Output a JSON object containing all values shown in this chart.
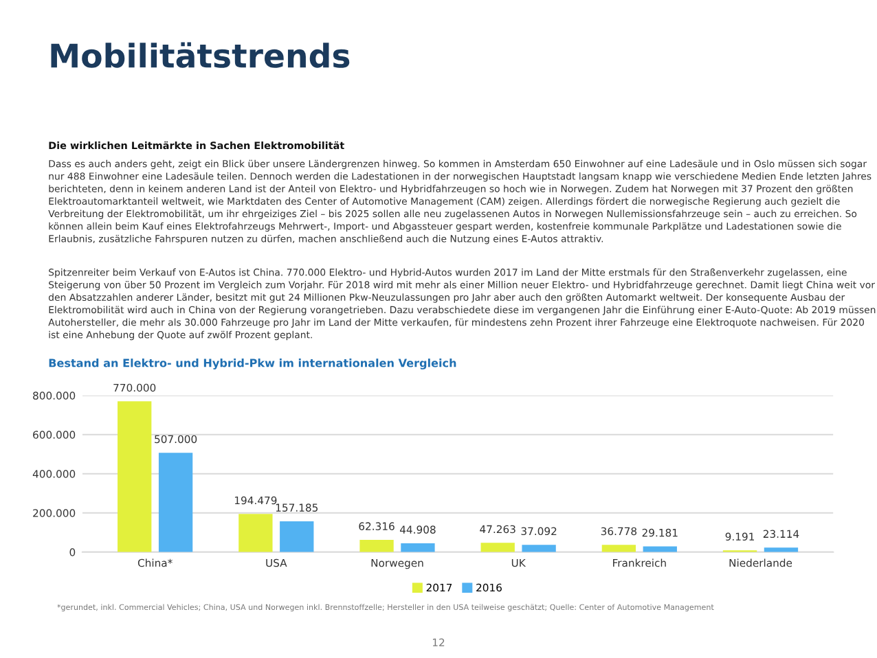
{
  "chart_data": {
    "type": "bar",
    "title": "Mobilitätstrends",
    "subtitle": "Bestand an Elektro- und Hybrid-Pkw im internationalen Vergleich",
    "annotations": [
      "Die wirklichen Leitmärkte in Sachen Elektromobilität",
      "Dass es auch anders geht, zeigt ein Blick über unsere Ländergrenzen hinweg. So kommen in Amsterdam 650 Einwohner auf eine Ladesäule und in Oslo müssen sich sogar nur 488 Einwohner eine Ladesäule teilen. Dennoch werden die Ladestationen in der norwegischen Hauptstadt langsam knapp wie verschiedene Medien Ende letzten Jahres berichteten, denn in keinem anderen Land ist der Anteil von Elektro- und Hybridfahrzeugen so hoch wie in Norwegen. Zudem hat Norwegen mit 37 Prozent den größten Elektroautomarktanteil weltweit, wie Marktdaten des Center of Automotive Management (CAM) zeigen. Allerdings fördert die norwegische Regierung auch gezielt die Verbreitung der Elektromobilität, um ihr ehrgeiziges Ziel – bis 2025 sollen alle neu zugelassenen Autos in Norwegen Nullemissionsfahrzeuge sein – auch zu erreichen. So können allein beim Kauf eines Elektrofahrzeugs Mehrwert-, Import- und Abgassteuer gespart werden, kostenfreie kommunale Parkplätze und Ladestationen sowie die Erlaubnis, zusätzliche Fahrspuren nutzen zu dürfen, machen anschließend auch die Nutzung eines E-Autos attraktiv.",
      "Spitzenreiter beim Verkauf von E-Autos ist China. 770.000 Elektro- und Hybrid-Autos wurden 2017 im Land der Mitte erstmals für den Straßenverkehr zugelassen, eine Steigerung von über 50 Prozent im Vergleich zum Vorjahr. Für 2018 wird mit mehr als einer Million neuer Elektro- und Hybridfahrzeuge gerechnet. Damit liegt China weit vor den Absatzzahlen anderer Länder, besitzt mit gut 24 Millionen Pkw-Neuzulassungen pro Jahr aber auch den größten Automarkt weltweit. Der konsequente Ausbau der Elektromobilität wird auch in China von der Regierung vorangetrieben. Dazu verabschiedete diese im vergangenen Jahr die Einführung einer E-Auto-Quote: Ab 2019 müssen Autohersteller, die mehr als 30.000 Fahrzeuge pro Jahr im Land der Mitte verkaufen, für mindestens zehn Prozent ihrer Fahrzeuge eine Elektroquote nachweisen. Für 2020 ist eine Anhebung der Quote auf zwölf Prozent geplant.",
      "*gerundet, inkl. Commercial Vehicles; China, USA und Norwegen inkl. Brennstoffzelle; Hersteller in den USA teilweise geschätzt; Quelle: Center of Automotive Management",
      "12"
    ],
    "categories": [
      "China*",
      "USA",
      "Norwegen",
      "UK",
      "Frankreich",
      "Niederlande"
    ],
    "series": [
      {
        "name": "2017",
        "color": "#e2f03c",
        "values": [
          770000,
          194479,
          62316,
          47263,
          36778,
          9191
        ],
        "value_labels": [
          "770.000",
          "194.479",
          "62.316",
          "47.263",
          "36.778",
          "9.191"
        ]
      },
      {
        "name": "2016",
        "color": "#52b2f2",
        "values": [
          507000,
          157185,
          44908,
          37092,
          29181,
          23114
        ],
        "value_labels": [
          "507.000",
          "157.185",
          "44.908",
          "37.092",
          "29.181",
          "23.114"
        ]
      }
    ],
    "ylim": [
      0,
      800000
    ],
    "yticks": [
      0,
      {
        "value": 200000,
        "label": "200.000"
      },
      {
        "value": 400000,
        "label": "400.000"
      },
      {
        "value": 600000,
        "label": "600.000"
      },
      {
        "value": 800000,
        "label": "800.000"
      }
    ],
    "grid": "y",
    "legend": "bottom"
  }
}
